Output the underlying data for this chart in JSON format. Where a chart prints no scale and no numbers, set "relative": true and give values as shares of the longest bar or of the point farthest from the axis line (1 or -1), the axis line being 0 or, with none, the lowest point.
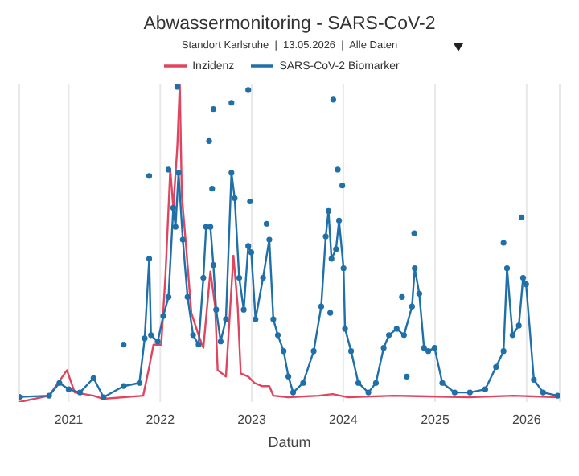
{
  "chart_data": {
    "type": "line",
    "title": "Abwassermonitoring - SARS-CoV-2",
    "subtitle": "Standort Karlsruhe  |  13.05.2026  |  Alle Daten",
    "xlabel": "Datum",
    "relative": true,
    "grid": "x",
    "legend": "top",
    "xlim": [
      "2020-06-18",
      "2026-05-13"
    ],
    "xticks": [
      "2021",
      "2022",
      "2023",
      "2024",
      "2025",
      "2026"
    ],
    "series": [
      {
        "name": "Inzidenz",
        "color": "#e0445e",
        "marker": "none",
        "x": [
          "2020-06-18",
          "2020-10-15",
          "2020-12-25",
          "2021-01-25",
          "2021-04-10",
          "2021-05-20",
          "2021-10-25",
          "2021-11-18",
          "2021-12-05",
          "2022-01-05",
          "2022-01-22",
          "2022-02-10",
          "2022-02-22",
          "2022-03-10",
          "2022-03-20",
          "2022-03-28",
          "2022-04-15",
          "2022-05-05",
          "2022-06-03",
          "2022-06-22",
          "2022-07-20",
          "2022-08-08",
          "2022-08-18",
          "2022-09-20",
          "2022-10-20",
          "2022-11-06",
          "2022-11-18",
          "2022-12-18",
          "2023-01-12",
          "2023-02-10",
          "2023-03-12",
          "2023-03-28",
          "2023-05-27",
          "2023-09-25",
          "2023-11-20",
          "2024-01-20",
          "2024-07-20",
          "2025-05-15",
          "2025-11-10",
          "2026-05-05"
        ],
        "values": [
          0,
          0.02,
          0.1,
          0.03,
          0.02,
          0.01,
          0.02,
          0.11,
          0.18,
          0.18,
          0.4,
          0.73,
          0.61,
          0.8,
          1.0,
          0.65,
          0.48,
          0.28,
          0.21,
          0.17,
          0.41,
          0.3,
          0.1,
          0.08,
          0.46,
          0.3,
          0.09,
          0.08,
          0.06,
          0.05,
          0.05,
          0.02,
          0.015,
          0.02,
          0.025,
          0.015,
          0.02,
          0.015,
          0.02,
          0.015
        ]
      },
      {
        "name": "SARS-CoV-2 Biomarker",
        "color": "#1f6fa8",
        "marker": "circle",
        "x": [
          "2020-06-18",
          "2020-10-15",
          "2020-11-25",
          "2021-01-01",
          "2021-02-15",
          "2021-04-10",
          "2021-05-20",
          "2021-08-08",
          "2021-10-10",
          "2021-10-31",
          "2021-11-18",
          "2021-11-25",
          "2021-12-22",
          "2022-01-13",
          "2022-02-03",
          "2022-02-22",
          "2022-03-03",
          "2022-03-15",
          "2022-04-01",
          "2022-04-20",
          "2022-05-12",
          "2022-06-03",
          "2022-06-22",
          "2022-07-03",
          "2022-07-20",
          "2022-08-01",
          "2022-08-12",
          "2022-08-30",
          "2022-09-20",
          "2022-10-12",
          "2022-10-25",
          "2022-11-12",
          "2022-11-30",
          "2022-12-18",
          "2022-12-30",
          "2023-01-16",
          "2023-02-15",
          "2023-03-12",
          "2023-03-28",
          "2023-04-15",
          "2023-05-08",
          "2023-05-27",
          "2023-06-15",
          "2023-07-25",
          "2023-09-05",
          "2023-10-05",
          "2023-10-23",
          "2023-11-03",
          "2023-11-15",
          "2023-12-03",
          "2023-12-15",
          "2024-01-02",
          "2024-01-08",
          "2024-02-01",
          "2024-03-01",
          "2024-04-10",
          "2024-05-10",
          "2024-06-10",
          "2024-07-01",
          "2024-08-01",
          "2024-08-30",
          "2024-10-01",
          "2024-10-12",
          "2024-10-30",
          "2024-11-18",
          "2024-12-05",
          "2024-12-30",
          "2025-01-30",
          "2025-03-20",
          "2025-05-20",
          "2025-07-20",
          "2025-09-01",
          "2025-10-01",
          "2025-10-15",
          "2025-11-06",
          "2025-12-01",
          "2025-12-18",
          "2025-12-30",
          "2026-01-30",
          "2026-03-08",
          "2026-05-05"
        ],
        "values": [
          0.016,
          0.02,
          0.06,
          0.04,
          0.03,
          0.075,
          0.015,
          0.05,
          0.06,
          0.2,
          0.45,
          0.21,
          0.19,
          0.27,
          0.33,
          0.61,
          0.55,
          0.72,
          0.51,
          0.33,
          0.21,
          0.18,
          0.39,
          0.55,
          0.55,
          0.43,
          0.29,
          0.19,
          0.26,
          0.72,
          0.64,
          0.39,
          0.29,
          0.49,
          0.47,
          0.26,
          0.39,
          0.51,
          0.26,
          0.21,
          0.16,
          0.08,
          0.03,
          0.06,
          0.16,
          0.3,
          0.52,
          0.6,
          0.45,
          0.48,
          0.57,
          0.42,
          0.23,
          0.16,
          0.06,
          0.03,
          0.06,
          0.17,
          0.21,
          0.23,
          0.21,
          0.3,
          0.42,
          0.34,
          0.17,
          0.16,
          0.17,
          0.06,
          0.03,
          0.03,
          0.04,
          0.11,
          0.16,
          0.42,
          0.21,
          0.24,
          0.39,
          0.37,
          0.07,
          0.03,
          0.02
        ]
      },
      {
        "type": "scatter",
        "color": "#1f6fa8",
        "marker": "circle",
        "x": [
          "2021-08-08",
          "2021-11-18",
          "2022-02-03",
          "2022-03-10",
          "2022-07-15",
          "2022-07-27",
          "2022-08-01",
          "2022-10-12",
          "2022-12-18",
          "2022-12-25",
          "2023-03-01",
          "2023-11-10",
          "2023-11-22",
          "2023-12-10",
          "2023-12-28",
          "2024-08-22",
          "2024-09-10",
          "2024-10-10",
          "2025-10-01",
          "2025-12-12"
        ],
        "values": [
          0.18,
          0.71,
          0.73,
          0.99,
          0.82,
          0.67,
          0.92,
          0.94,
          0.98,
          0.63,
          0.56,
          0.28,
          0.95,
          0.73,
          0.68,
          0.33,
          0.08,
          0.53,
          0.5,
          0.58
        ]
      }
    ]
  }
}
